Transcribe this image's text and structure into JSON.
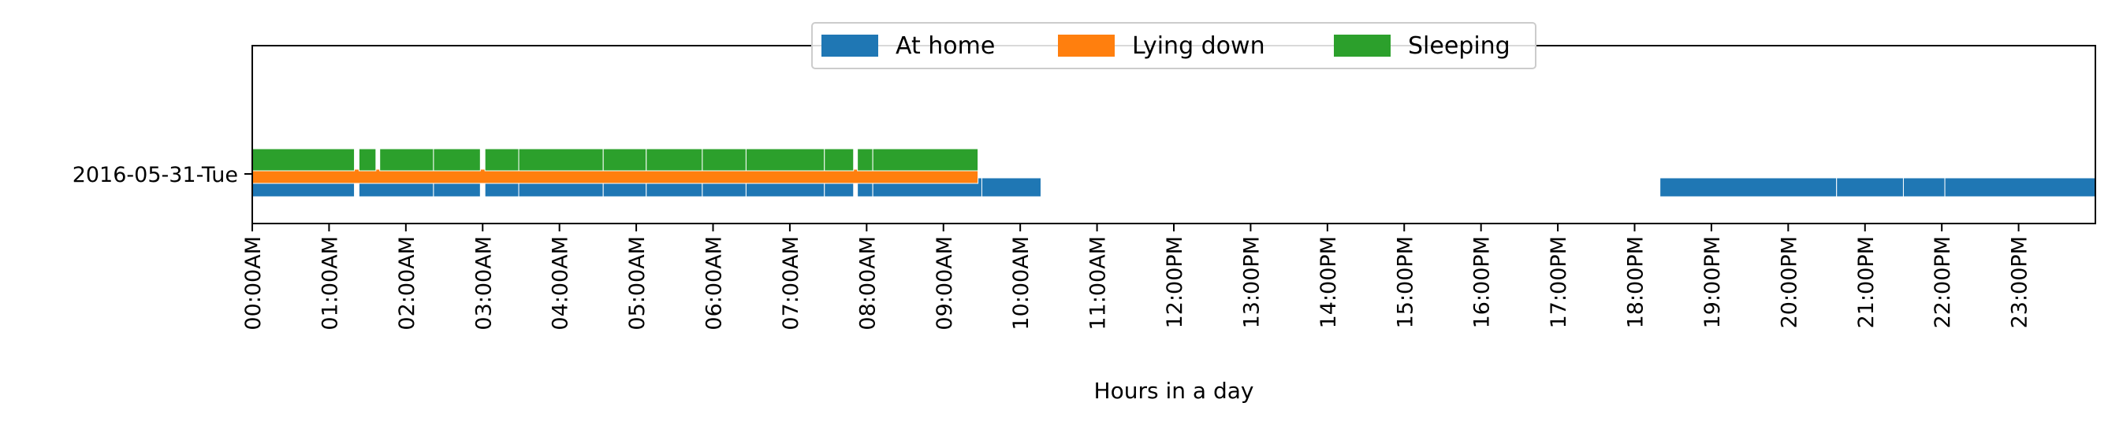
{
  "chart_data": {
    "type": "timeline",
    "xlabel": "Hours in a day",
    "x_unit": "hour",
    "xlim": [
      0,
      24
    ],
    "x_ticks": [
      {
        "hour": 0,
        "label": "00:00AM"
      },
      {
        "hour": 1,
        "label": "01:00AM"
      },
      {
        "hour": 2,
        "label": "02:00AM"
      },
      {
        "hour": 3,
        "label": "03:00AM"
      },
      {
        "hour": 4,
        "label": "04:00AM"
      },
      {
        "hour": 5,
        "label": "05:00AM"
      },
      {
        "hour": 6,
        "label": "06:00AM"
      },
      {
        "hour": 7,
        "label": "07:00AM"
      },
      {
        "hour": 8,
        "label": "08:00AM"
      },
      {
        "hour": 9,
        "label": "09:00AM"
      },
      {
        "hour": 10,
        "label": "10:00AM"
      },
      {
        "hour": 11,
        "label": "11:00AM"
      },
      {
        "hour": 12,
        "label": "12:00PM"
      },
      {
        "hour": 13,
        "label": "13:00PM"
      },
      {
        "hour": 14,
        "label": "14:00PM"
      },
      {
        "hour": 15,
        "label": "15:00PM"
      },
      {
        "hour": 16,
        "label": "16:00PM"
      },
      {
        "hour": 17,
        "label": "17:00PM"
      },
      {
        "hour": 18,
        "label": "18:00PM"
      },
      {
        "hour": 19,
        "label": "19:00PM"
      },
      {
        "hour": 20,
        "label": "20:00PM"
      },
      {
        "hour": 21,
        "label": "21:00PM"
      },
      {
        "hour": 22,
        "label": "22:00PM"
      },
      {
        "hour": 23,
        "label": "23:00PM"
      }
    ],
    "y_categories": [
      "2016-05-31-Tue"
    ],
    "legend_position": "top-center",
    "series": [
      {
        "name": "At home",
        "color": "#1f77b4",
        "row": "2016-05-31-Tue",
        "intervals": [
          [
            0.0,
            1.33
          ],
          [
            1.39,
            2.36
          ],
          [
            2.36,
            2.97
          ],
          [
            3.03,
            3.47
          ],
          [
            3.47,
            4.57
          ],
          [
            4.57,
            5.13
          ],
          [
            5.13,
            5.86
          ],
          [
            5.86,
            6.43
          ],
          [
            6.43,
            7.45
          ],
          [
            7.45,
            7.83
          ],
          [
            7.88,
            8.08
          ],
          [
            8.08,
            9.5
          ],
          [
            9.5,
            10.27
          ],
          [
            18.33,
            20.63
          ],
          [
            20.63,
            21.5
          ],
          [
            21.5,
            22.04
          ],
          [
            22.04,
            24.0
          ]
        ]
      },
      {
        "name": "Lying down",
        "color": "#ff7f0e",
        "row": "2016-05-31-Tue",
        "intervals": [
          [
            0.0,
            9.45
          ]
        ]
      },
      {
        "name": "Sleeping",
        "color": "#2ca02c",
        "row": "2016-05-31-Tue",
        "intervals": [
          [
            0.0,
            1.33
          ],
          [
            1.39,
            1.61
          ],
          [
            1.66,
            2.36
          ],
          [
            2.36,
            2.97
          ],
          [
            3.03,
            3.47
          ],
          [
            3.47,
            4.57
          ],
          [
            4.57,
            5.13
          ],
          [
            5.13,
            5.86
          ],
          [
            5.86,
            6.43
          ],
          [
            6.43,
            7.45
          ],
          [
            7.45,
            7.83
          ],
          [
            7.88,
            8.08
          ],
          [
            8.08,
            9.45
          ]
        ]
      }
    ]
  }
}
